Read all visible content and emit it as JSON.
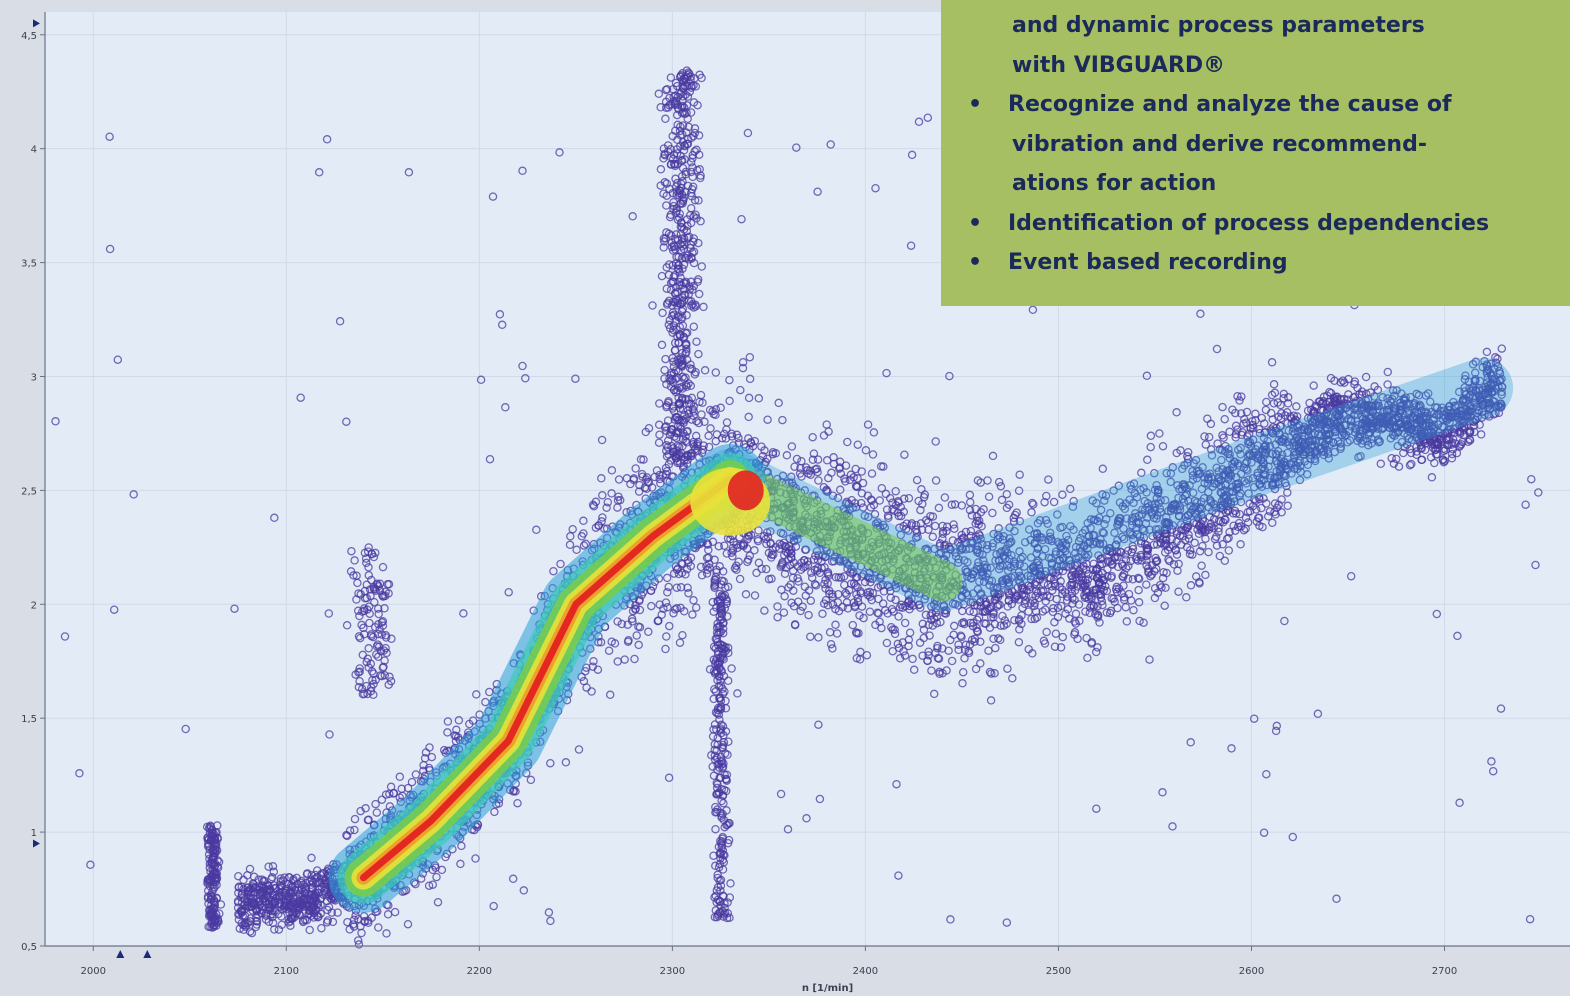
{
  "chart_data": {
    "type": "scatter",
    "title": "",
    "xlabel": "n [1/min]",
    "ylabel": "",
    "xlim": [
      1975,
      2765
    ],
    "ylim": [
      0.5,
      4.6
    ],
    "x_ticks": [
      2000,
      2100,
      2200,
      2300,
      2400,
      2500,
      2600,
      2700
    ],
    "x_tick_labels": [
      "2000",
      "2100",
      "2200",
      "2300",
      "2400",
      "2500",
      "2600",
      "2700"
    ],
    "y_ticks": [
      0.5,
      1,
      1.5,
      2,
      2.5,
      3,
      3.5,
      4,
      4.5
    ],
    "y_tick_labels": [
      "0,5",
      "1",
      "1,5",
      "2",
      "2,5",
      "3",
      "3,5",
      "4",
      "4,5"
    ],
    "grid": true,
    "colormap": [
      "#463b9c",
      "#2a9fd8",
      "#3fc9b8",
      "#78cc4a",
      "#e8e23a",
      "#f09a28",
      "#e12222"
    ],
    "markers": {
      "y_axis_marks": [
        4.55,
        0.95
      ],
      "x_axis_marks": [
        2014,
        2028
      ]
    },
    "density_ridge": [
      {
        "x": 2140,
        "y": 0.8,
        "density": "high"
      },
      {
        "x": 2175,
        "y": 1.05,
        "density": "high"
      },
      {
        "x": 2215,
        "y": 1.4,
        "density": "high"
      },
      {
        "x": 2250,
        "y": 2.0,
        "density": "high"
      },
      {
        "x": 2290,
        "y": 2.3,
        "density": "high"
      },
      {
        "x": 2330,
        "y": 2.55,
        "density": "high"
      },
      {
        "x": 2440,
        "y": 2.1,
        "density": "medium"
      },
      {
        "x": 2600,
        "y": 2.6,
        "density": "low"
      },
      {
        "x": 2720,
        "y": 2.95,
        "density": "low"
      }
    ]
  },
  "info_box": {
    "lines": [
      {
        "type": "cont",
        "text": "and dynamic process parameters"
      },
      {
        "type": "cont",
        "text": "with VIBGUARD®"
      },
      {
        "type": "bullet",
        "text": "Recognize and analyze the cause of"
      },
      {
        "type": "cont",
        "text": "vibration and derive recommend-"
      },
      {
        "type": "cont",
        "text": "ations for action"
      },
      {
        "type": "bullet",
        "text": "Identification of process dependencies"
      },
      {
        "type": "bullet",
        "text": "Event based recording"
      }
    ],
    "bullet_char": "•",
    "background": "#a6bf62",
    "text_color": "#1b2a5a"
  }
}
